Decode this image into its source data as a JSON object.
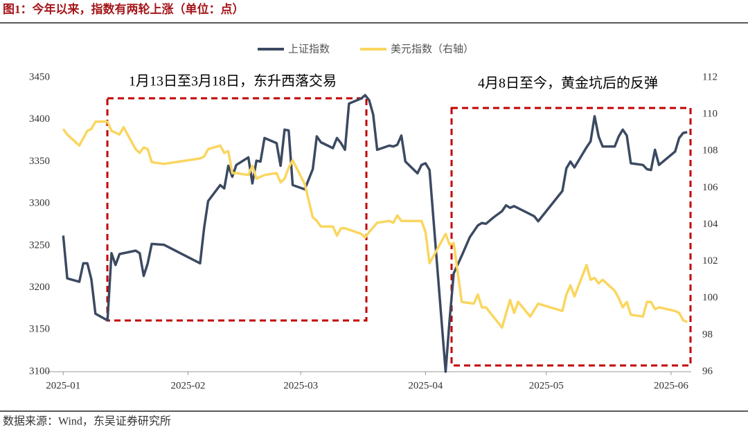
{
  "chart_data": {
    "type": "line",
    "title": "图1：今年以来，指数有两轮上涨（单位：点）",
    "source": "数据来源：Wind，东吴证券研究所",
    "annotations": [
      "1月13日至3月18日，东升西落交易",
      "4月8日至今，黄金坑后的反弹"
    ],
    "xlim": [
      -4,
      156
    ],
    "xticks": [
      {
        "value": 0,
        "label": "2025-01"
      },
      {
        "value": 31,
        "label": "2025-02"
      },
      {
        "value": 59,
        "label": "2025-03"
      },
      {
        "value": 90,
        "label": "2025-04"
      },
      {
        "value": 120,
        "label": "2025-05"
      },
      {
        "value": 151,
        "label": "2025-06"
      }
    ],
    "ylim": [
      3100,
      3450
    ],
    "yticks": [
      3100,
      3150,
      3200,
      3250,
      3300,
      3350,
      3400,
      3450
    ],
    "y2lim": [
      96,
      112
    ],
    "y2ticks": [
      96,
      98,
      100,
      102,
      104,
      106,
      108,
      110,
      112
    ],
    "grid": false,
    "legend": "top",
    "series": [
      {
        "name": "上证指数",
        "color": "#3b4a61",
        "x": [
          0,
          1,
          4,
          5,
          6,
          7,
          8,
          11,
          12,
          13,
          14,
          18,
          19,
          20,
          21,
          22,
          25,
          34,
          35,
          36,
          39,
          40,
          41,
          42,
          43,
          46,
          47,
          48,
          49,
          50,
          53,
          54,
          55,
          56,
          57,
          60,
          62,
          63,
          64,
          67,
          68,
          69,
          70,
          71,
          74,
          75,
          76,
          77,
          78,
          81,
          82,
          83,
          84,
          85,
          88,
          89,
          90,
          91,
          95,
          96,
          97,
          99,
          101,
          103,
          104,
          105,
          107,
          109,
          110,
          111,
          112,
          117,
          118,
          124,
          125,
          126,
          127,
          130,
          131,
          132,
          133,
          134,
          137,
          138,
          139,
          140,
          141,
          144,
          145,
          146,
          147,
          148,
          152,
          153,
          154,
          155
        ],
        "values": [
          3262,
          3211,
          3207,
          3229,
          3229,
          3210,
          3169,
          3161,
          3241,
          3227,
          3240,
          3244,
          3241,
          3214,
          3229,
          3252,
          3251,
          3229,
          3271,
          3303,
          3322,
          3318,
          3345,
          3332,
          3346,
          3355,
          3324,
          3351,
          3350,
          3378,
          3372,
          3345,
          3388,
          3387,
          3322,
          3317,
          3341,
          3380,
          3373,
          3366,
          3378,
          3372,
          3364,
          3419,
          3425,
          3429,
          3423,
          3406,
          3364,
          3369,
          3368,
          3370,
          3381,
          3350,
          3336,
          3346,
          3348,
          3340,
          3100,
          3163,
          3217,
          3238,
          3260,
          3274,
          3277,
          3276,
          3284,
          3291,
          3298,
          3295,
          3297,
          3285,
          3279,
          3315,
          3342,
          3350,
          3343,
          3367,
          3374,
          3404,
          3380,
          3368,
          3368,
          3380,
          3388,
          3381,
          3348,
          3346,
          3341,
          3340,
          3364,
          3346,
          3362,
          3378,
          3384,
          3385
        ]
      },
      {
        "name": "美元指数（右轴）",
        "color": "#fad65f",
        "axis": "y2",
        "x": [
          0,
          1,
          4,
          5,
          6,
          7,
          8,
          11,
          12,
          13,
          14,
          15,
          18,
          19,
          20,
          21,
          22,
          25,
          34,
          35,
          36,
          39,
          40,
          41,
          42,
          43,
          46,
          47,
          48,
          49,
          50,
          53,
          54,
          55,
          56,
          57,
          60,
          62,
          63,
          64,
          67,
          68,
          69,
          70,
          74,
          75,
          76,
          78,
          81,
          82,
          83,
          84,
          87,
          89,
          90,
          91,
          95,
          96,
          97,
          99,
          102,
          103,
          104,
          105,
          109,
          111,
          112,
          113,
          116,
          118,
          124,
          125,
          126,
          127,
          130,
          131,
          132,
          133,
          134,
          137,
          138,
          139,
          140,
          141,
          144,
          145,
          146,
          147,
          148,
          152,
          153,
          154,
          155
        ],
        "values": [
          109.2,
          108.9,
          108.3,
          108.7,
          109.1,
          109.2,
          109.6,
          109.6,
          109.1,
          109.0,
          108.9,
          109.3,
          108.1,
          107.9,
          108.2,
          108.1,
          107.4,
          107.3,
          107.6,
          107.7,
          108.1,
          108.3,
          107.9,
          108.0,
          106.8,
          106.8,
          106.7,
          107.2,
          106.5,
          106.6,
          106.7,
          106.8,
          106.3,
          106.5,
          107.1,
          107.5,
          106.2,
          104.4,
          104.2,
          103.9,
          103.9,
          103.4,
          103.8,
          103.8,
          103.5,
          103.3,
          103.6,
          104.1,
          104.2,
          104.1,
          104.5,
          104.2,
          104.2,
          104.2,
          103.6,
          101.9,
          103.5,
          102.9,
          103.0,
          99.8,
          99.7,
          100.2,
          99.5,
          99.5,
          98.4,
          99.9,
          99.2,
          99.8,
          99.0,
          99.7,
          99.3,
          100.2,
          100.7,
          100.1,
          101.8,
          101.0,
          101.1,
          100.8,
          101.0,
          100.4,
          100.0,
          99.5,
          99.8,
          99.1,
          99.0,
          99.8,
          99.8,
          99.4,
          99.5,
          99.3,
          99.2,
          98.8,
          98.7
        ]
      }
    ]
  }
}
